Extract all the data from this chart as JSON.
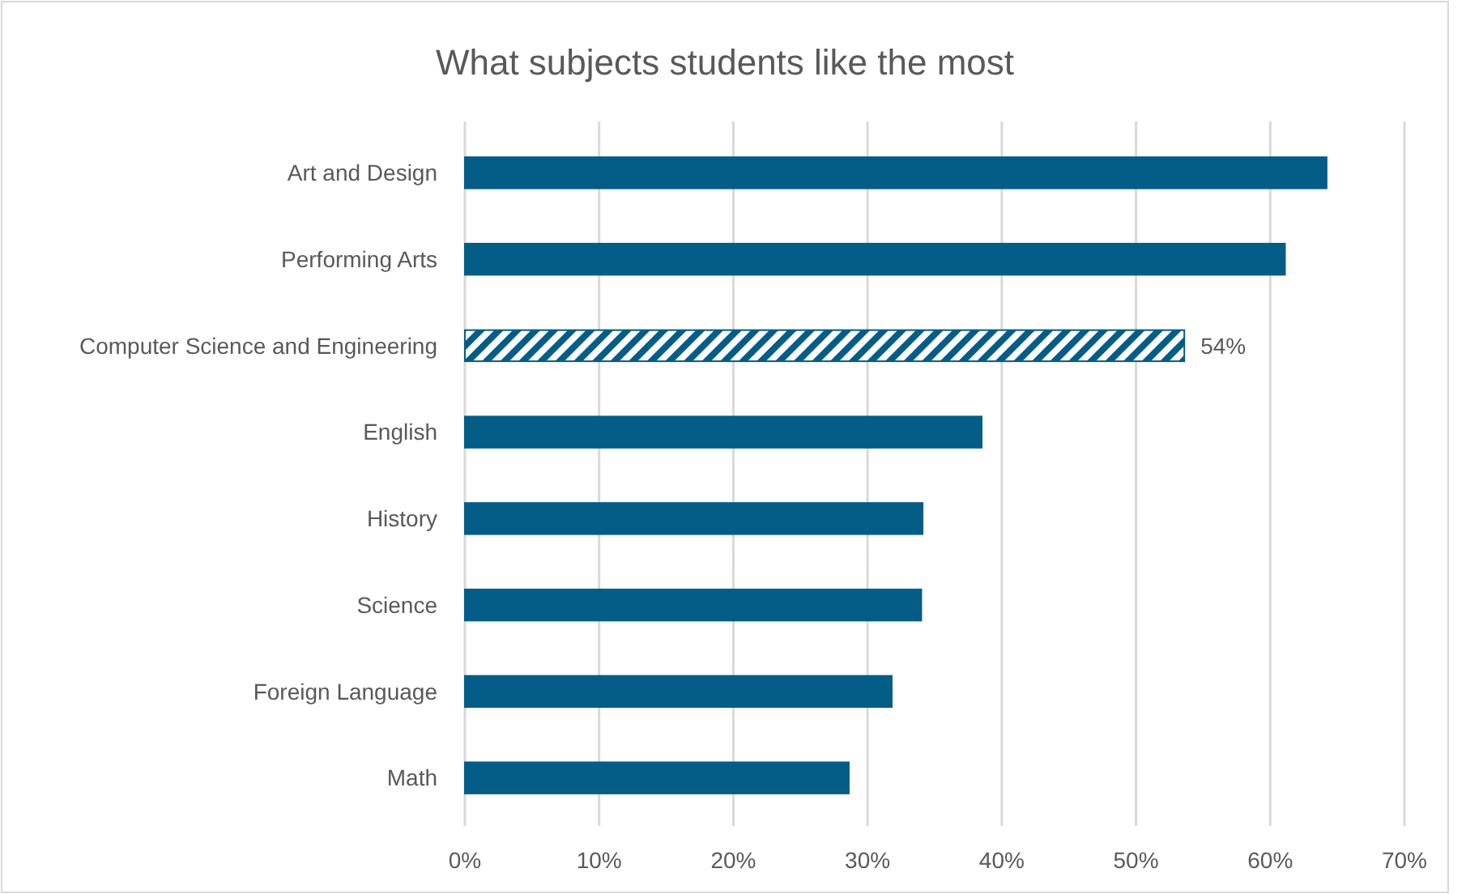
{
  "chart_data": {
    "type": "bar",
    "orientation": "horizontal",
    "title": "What subjects students like the most",
    "categories": [
      "Art and Design",
      "Performing Arts",
      "Computer Science and Engineering",
      "English",
      "History",
      "Science",
      "Foreign Language",
      "Math"
    ],
    "values": [
      64.2,
      61.1,
      53.6,
      38.5,
      34.1,
      34.0,
      31.8,
      28.6
    ],
    "value_labels": [
      null,
      null,
      "54%",
      null,
      null,
      null,
      null,
      null
    ],
    "color": "#045d87",
    "xlim": [
      0,
      70
    ],
    "xticks": [
      {
        "value": 0,
        "label": "0%"
      },
      {
        "value": 10,
        "label": "10%"
      },
      {
        "value": 20,
        "label": "20%"
      },
      {
        "value": 30,
        "label": "30%"
      },
      {
        "value": 40,
        "label": "40%"
      },
      {
        "value": 50,
        "label": "50%"
      },
      {
        "value": 60,
        "label": "60%"
      },
      {
        "value": 70,
        "label": "70%"
      }
    ],
    "grid": "x"
  }
}
